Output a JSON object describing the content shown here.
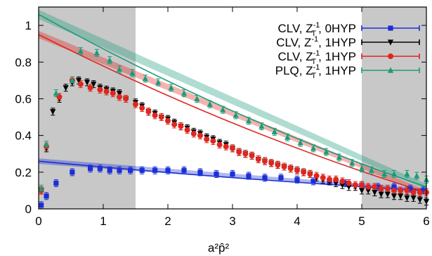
{
  "chart_data": {
    "type": "scatter",
    "xlabel": "a²p̂²",
    "ylabel": "",
    "xlim": [
      0,
      6
    ],
    "ylim": [
      0,
      1.1
    ],
    "x_ticks": [
      0,
      1,
      2,
      3,
      4,
      5,
      6
    ],
    "y_ticks": [
      0,
      0.2,
      0.4,
      0.6,
      0.8,
      1
    ],
    "grid": false,
    "legend_position": "top-right",
    "shaded_regions": [
      [
        0,
        1.5
      ],
      [
        5,
        6
      ]
    ],
    "colors": {
      "shade": "#c8c8c8",
      "blue": "#1a2fd6",
      "black": "#000000",
      "red": "#e0261e",
      "green": "#1a9c78"
    },
    "series": [
      {
        "name": "CLV, Z_T^{-1}, 0HYP",
        "legend_main": "CLV, Z",
        "legend_sup": "-1",
        "legend_sub": "T",
        "legend_tail": ", 0HYP",
        "color": "blue",
        "marker": "square",
        "points": [
          [
            0.04,
            0.02
          ],
          [
            0.12,
            0.07
          ],
          [
            0.27,
            0.14
          ],
          [
            0.52,
            0.2
          ],
          [
            0.8,
            0.22
          ],
          [
            0.95,
            0.22
          ],
          [
            1.1,
            0.21
          ],
          [
            1.25,
            0.21
          ],
          [
            1.42,
            0.21
          ],
          [
            1.6,
            0.21
          ],
          [
            1.8,
            0.21
          ],
          [
            2.0,
            0.21
          ],
          [
            2.25,
            0.21
          ],
          [
            2.5,
            0.2
          ],
          [
            2.75,
            0.19
          ],
          [
            3.0,
            0.19
          ],
          [
            3.25,
            0.18
          ],
          [
            3.5,
            0.17
          ],
          [
            3.75,
            0.17
          ],
          [
            4.0,
            0.16
          ],
          [
            4.25,
            0.15
          ],
          [
            4.5,
            0.15
          ],
          [
            4.75,
            0.14
          ],
          [
            5.0,
            0.13
          ],
          [
            5.25,
            0.12
          ],
          [
            5.5,
            0.12
          ],
          [
            5.75,
            0.11
          ],
          [
            5.95,
            0.1
          ]
        ],
        "fit": {
          "start": 0.26,
          "end": 0.1,
          "band": 0.015
        }
      },
      {
        "name": "CLV, Z_T^{-1}, 1HYP",
        "legend_main": "CLV, Z",
        "legend_sup": "-1",
        "legend_sub": "",
        "legend_tail": ", 1HYP",
        "color": "black",
        "marker": "triangle-down",
        "points": [
          [
            0.04,
            0.1
          ],
          [
            0.12,
            0.33
          ],
          [
            0.22,
            0.53
          ],
          [
            0.32,
            0.6
          ],
          [
            0.42,
            0.66
          ],
          [
            0.52,
            0.69
          ],
          [
            0.62,
            0.7
          ],
          [
            0.75,
            0.69
          ],
          [
            0.85,
            0.68
          ],
          [
            0.95,
            0.66
          ],
          [
            1.05,
            0.65
          ],
          [
            1.15,
            0.64
          ],
          [
            1.25,
            0.63
          ],
          [
            1.35,
            0.6
          ],
          [
            1.5,
            0.58
          ],
          [
            1.6,
            0.56
          ],
          [
            1.7,
            0.53
          ],
          [
            1.8,
            0.52
          ],
          [
            1.9,
            0.5
          ],
          [
            2.0,
            0.49
          ],
          [
            2.1,
            0.47
          ],
          [
            2.2,
            0.45
          ],
          [
            2.3,
            0.44
          ],
          [
            2.4,
            0.42
          ],
          [
            2.5,
            0.41
          ],
          [
            2.6,
            0.39
          ],
          [
            2.7,
            0.38
          ],
          [
            2.8,
            0.36
          ],
          [
            2.9,
            0.35
          ],
          [
            3.0,
            0.33
          ],
          [
            3.1,
            0.31
          ],
          [
            3.2,
            0.3
          ],
          [
            3.3,
            0.29
          ],
          [
            3.4,
            0.27
          ],
          [
            3.5,
            0.26
          ],
          [
            3.6,
            0.25
          ],
          [
            3.7,
            0.24
          ],
          [
            3.8,
            0.23
          ],
          [
            3.9,
            0.22
          ],
          [
            4.0,
            0.21
          ],
          [
            4.1,
            0.2
          ],
          [
            4.2,
            0.19
          ],
          [
            4.3,
            0.17
          ],
          [
            4.4,
            0.16
          ],
          [
            4.5,
            0.15
          ],
          [
            4.6,
            0.14
          ],
          [
            4.7,
            0.13
          ],
          [
            4.8,
            0.12
          ],
          [
            4.9,
            0.12
          ],
          [
            5.0,
            0.1
          ],
          [
            5.1,
            0.1
          ],
          [
            5.2,
            0.09
          ],
          [
            5.3,
            0.08
          ],
          [
            5.4,
            0.08
          ],
          [
            5.5,
            0.07
          ],
          [
            5.6,
            0.07
          ],
          [
            5.7,
            0.06
          ],
          [
            5.8,
            0.06
          ],
          [
            5.9,
            0.05
          ],
          [
            6.0,
            0.04
          ]
        ]
      },
      {
        "name": "CLV, Z_T^{-1}, 1HYP",
        "legend_main": "CLV, Z",
        "legend_sup": "-1",
        "legend_sub": "T",
        "legend_tail": ", 1HYP",
        "color": "red",
        "marker": "circle",
        "points": [
          [
            0.04,
            0.1
          ],
          [
            0.12,
            0.34
          ],
          [
            0.32,
            0.61
          ],
          [
            0.52,
            0.7
          ],
          [
            0.65,
            0.68
          ],
          [
            0.8,
            0.66
          ],
          [
            0.95,
            0.65
          ],
          [
            1.05,
            0.64
          ],
          [
            1.15,
            0.63
          ],
          [
            1.25,
            0.61
          ],
          [
            1.35,
            0.6
          ],
          [
            1.5,
            0.57
          ],
          [
            1.6,
            0.55
          ],
          [
            1.7,
            0.53
          ],
          [
            1.8,
            0.51
          ],
          [
            1.9,
            0.5
          ],
          [
            2.0,
            0.48
          ],
          [
            2.1,
            0.46
          ],
          [
            2.2,
            0.45
          ],
          [
            2.3,
            0.43
          ],
          [
            2.4,
            0.41
          ],
          [
            2.5,
            0.4
          ],
          [
            2.6,
            0.38
          ],
          [
            2.7,
            0.37
          ],
          [
            2.8,
            0.35
          ],
          [
            2.9,
            0.34
          ],
          [
            3.0,
            0.33
          ],
          [
            3.1,
            0.31
          ],
          [
            3.2,
            0.3
          ],
          [
            3.3,
            0.29
          ],
          [
            3.4,
            0.27
          ],
          [
            3.5,
            0.26
          ],
          [
            3.6,
            0.25
          ],
          [
            3.7,
            0.24
          ],
          [
            3.8,
            0.23
          ],
          [
            3.9,
            0.22
          ],
          [
            4.0,
            0.21
          ],
          [
            4.1,
            0.2
          ],
          [
            4.2,
            0.19
          ],
          [
            4.3,
            0.18
          ],
          [
            4.4,
            0.17
          ],
          [
            4.5,
            0.16
          ],
          [
            4.6,
            0.16
          ],
          [
            4.7,
            0.15
          ],
          [
            4.8,
            0.14
          ],
          [
            4.9,
            0.13
          ],
          [
            5.0,
            0.13
          ],
          [
            5.1,
            0.12
          ],
          [
            5.2,
            0.12
          ],
          [
            5.3,
            0.11
          ],
          [
            5.4,
            0.11
          ],
          [
            5.5,
            0.1
          ],
          [
            5.6,
            0.1
          ],
          [
            5.7,
            0.1
          ],
          [
            5.8,
            0.09
          ],
          [
            5.9,
            0.09
          ],
          [
            6.0,
            0.09
          ]
        ],
        "fit": {
          "start": 0.95,
          "end": 0.09,
          "band": 0.02
        }
      },
      {
        "name": "PLQ, Z_T^{-1}, 1HYP",
        "legend_main": "PLQ, Z",
        "legend_sup": "-1",
        "legend_sub": "T",
        "legend_tail": ", 1HYP",
        "color": "green",
        "marker": "triangle-up",
        "points": [
          [
            0.04,
            0.11
          ],
          [
            0.12,
            0.35
          ],
          [
            0.27,
            0.63
          ],
          [
            0.52,
            0.7
          ],
          [
            0.65,
            0.86
          ],
          [
            0.9,
            0.85
          ],
          [
            1.1,
            0.81
          ],
          [
            1.25,
            0.76
          ],
          [
            1.45,
            0.74
          ],
          [
            1.65,
            0.71
          ],
          [
            1.85,
            0.69
          ],
          [
            2.05,
            0.66
          ],
          [
            2.25,
            0.63
          ],
          [
            2.45,
            0.6
          ],
          [
            2.65,
            0.57
          ],
          [
            2.85,
            0.54
          ],
          [
            3.05,
            0.51
          ],
          [
            3.25,
            0.48
          ],
          [
            3.45,
            0.45
          ],
          [
            3.65,
            0.42
          ],
          [
            3.85,
            0.39
          ],
          [
            4.05,
            0.36
          ],
          [
            4.25,
            0.33
          ],
          [
            4.45,
            0.31
          ],
          [
            4.65,
            0.28
          ],
          [
            4.85,
            0.25
          ],
          [
            5.0,
            0.22
          ],
          [
            5.15,
            0.21
          ],
          [
            5.35,
            0.19
          ],
          [
            5.5,
            0.19
          ],
          [
            5.7,
            0.19
          ],
          [
            5.85,
            0.18
          ],
          [
            6.0,
            0.16
          ]
        ],
        "fit": {
          "start": 1.06,
          "end": 0.12,
          "band": 0.025
        }
      }
    ]
  }
}
